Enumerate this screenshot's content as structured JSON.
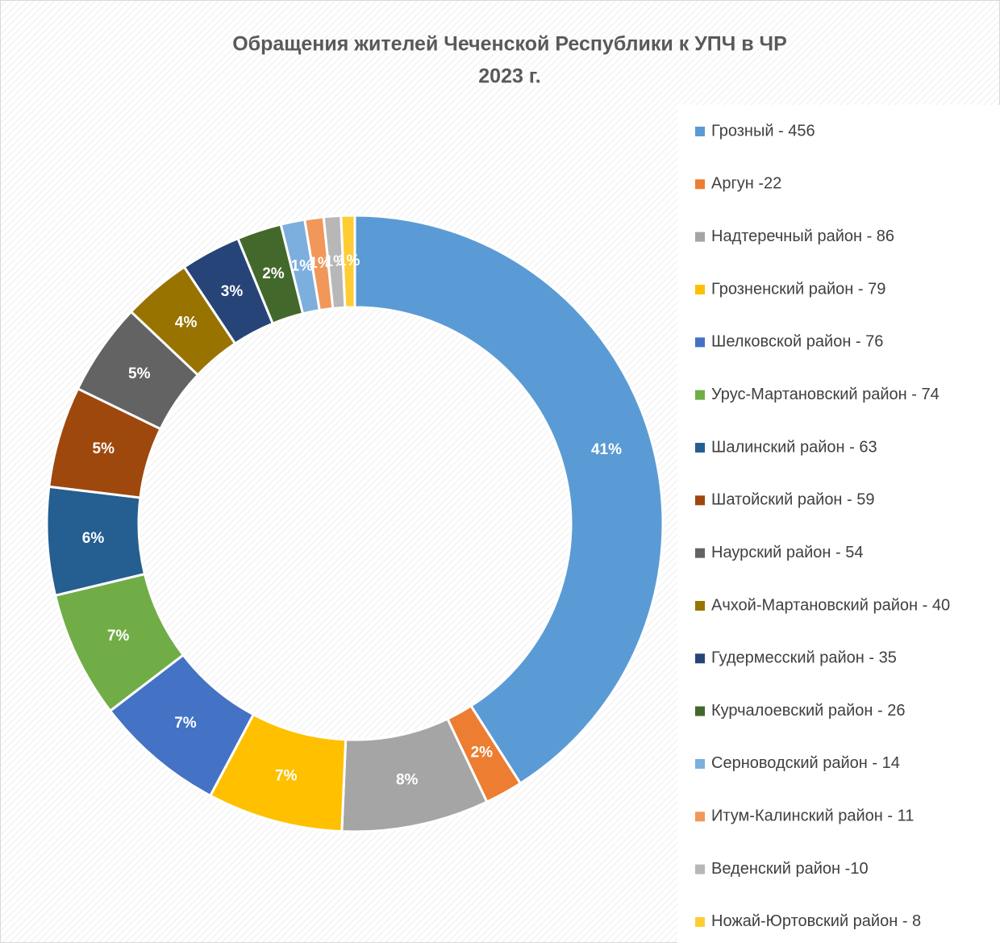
{
  "chart_data": {
    "type": "donut",
    "title": "Обращения жителей Чеченской Республики к УПЧ в ЧР",
    "subtitle": "2023 г.",
    "categories": [
      "Грозный - 456",
      "Аргун -22",
      "Надтеречный район - 86",
      "Грозненский район - 79",
      "Шелковской район - 76",
      "Урус-Мартановский район - 74",
      "Шалинский район - 63",
      "Шатойский район - 59",
      "Наурский район - 54",
      "Ачхой-Мартановский район - 40",
      "Гудермесский район - 35",
      "Курчалоевский район - 26",
      "Серноводский район - 14",
      "Итум-Калинский район - 11",
      "Веденский район -10",
      "Ножай-Юртовский район - 8"
    ],
    "values": [
      456,
      22,
      86,
      79,
      76,
      74,
      63,
      59,
      54,
      40,
      35,
      26,
      14,
      11,
      10,
      8
    ],
    "value_labels": [
      "41%",
      "2%",
      "8%",
      "7%",
      "7%",
      "7%",
      "6%",
      "5%",
      "5%",
      "4%",
      "3%",
      "2%",
      "1%",
      "1%",
      "1%",
      "1%"
    ],
    "colors": [
      "#5b9bd5",
      "#ed7d31",
      "#a5a5a5",
      "#ffc000",
      "#4472c4",
      "#70ad47",
      "#255e91",
      "#9e480e",
      "#636363",
      "#997300",
      "#264478",
      "#43682b",
      "#7cafdd",
      "#f1975a",
      "#b7b7b7",
      "#ffcd33"
    ],
    "legend": "right"
  }
}
